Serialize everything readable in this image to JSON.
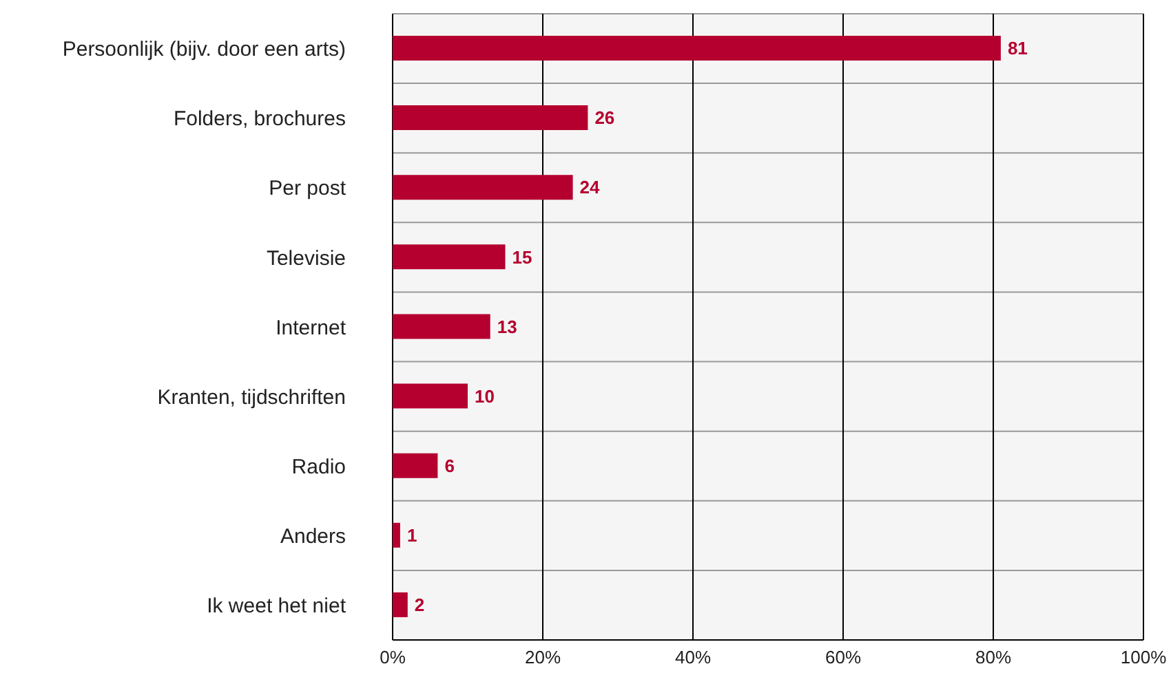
{
  "chart_data": {
    "type": "bar",
    "orientation": "horizontal",
    "categories": [
      "Persoonlijk (bijv. door een arts)",
      "Folders, brochures",
      "Per post",
      "Televisie",
      "Internet",
      "Kranten, tijdschriften",
      "Radio",
      "Anders",
      "Ik weet het niet"
    ],
    "values": [
      81,
      26,
      24,
      15,
      13,
      10,
      6,
      1,
      2
    ],
    "color": "#b5002f",
    "data_labels": true,
    "xlim": [
      0,
      100
    ],
    "xticks": [
      {
        "value": 0,
        "label": "0%"
      },
      {
        "value": 20,
        "label": "20%"
      },
      {
        "value": 40,
        "label": "40%"
      },
      {
        "value": 60,
        "label": "60%"
      },
      {
        "value": 80,
        "label": "80%"
      },
      {
        "value": 100,
        "label": "100%"
      }
    ],
    "grid": true
  }
}
